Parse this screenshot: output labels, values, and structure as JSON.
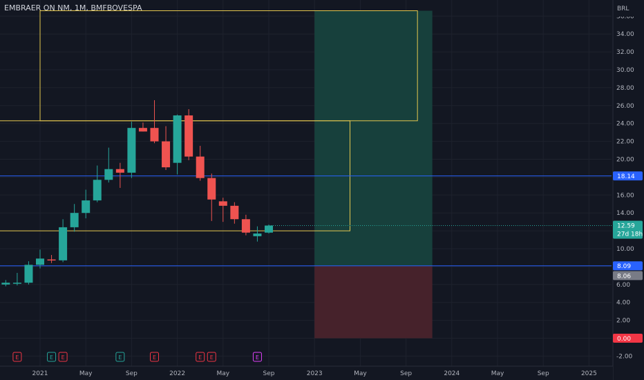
{
  "header": {
    "title": "EMBRAER ON NM, 1M, BMFBOVESPA"
  },
  "chart_data": {
    "type": "candlestick",
    "currency": "BRL",
    "y_ticks": [
      "-2.00",
      "0.00",
      "2.00",
      "4.00",
      "6.00",
      "8.00",
      "10.00",
      "12.00",
      "14.00",
      "16.00",
      "18.00",
      "20.00",
      "22.00",
      "24.00",
      "26.00",
      "28.00",
      "30.00",
      "32.00",
      "34.00",
      "36.00"
    ],
    "y_tick_values": [
      -2,
      0,
      2,
      4,
      6,
      8,
      10,
      12,
      14,
      16,
      18,
      20,
      22,
      24,
      26,
      28,
      30,
      32,
      34,
      36
    ],
    "x_ticks": [
      {
        "label": "2021",
        "month": 0
      },
      {
        "label": "May",
        "month": 4
      },
      {
        "label": "Sep",
        "month": 8
      },
      {
        "label": "2022",
        "month": 12
      },
      {
        "label": "May",
        "month": 16
      },
      {
        "label": "Sep",
        "month": 20
      },
      {
        "label": "2023",
        "month": 24
      },
      {
        "label": "May",
        "month": 28
      },
      {
        "label": "Sep",
        "month": 32
      },
      {
        "label": "2024",
        "month": 36
      },
      {
        "label": "May",
        "month": 40
      },
      {
        "label": "Sep",
        "month": 44
      },
      {
        "label": "2025",
        "month": 48
      }
    ],
    "candles": [
      {
        "m": -3,
        "o": 6.0,
        "h": 6.5,
        "l": 5.8,
        "c": 6.2
      },
      {
        "m": -2,
        "o": 6.1,
        "h": 7.3,
        "l": 5.9,
        "c": 6.2
      },
      {
        "m": -1,
        "o": 6.2,
        "h": 8.6,
        "l": 6.0,
        "c": 8.2
      },
      {
        "m": 0,
        "o": 8.2,
        "h": 9.9,
        "l": 7.8,
        "c": 8.9
      },
      {
        "m": 1,
        "o": 8.8,
        "h": 9.3,
        "l": 8.4,
        "c": 8.7
      },
      {
        "m": 2,
        "o": 8.7,
        "h": 13.3,
        "l": 8.5,
        "c": 12.4
      },
      {
        "m": 3,
        "o": 12.4,
        "h": 15.0,
        "l": 11.9,
        "c": 14.0
      },
      {
        "m": 4,
        "o": 14.0,
        "h": 16.6,
        "l": 13.4,
        "c": 15.4
      },
      {
        "m": 5,
        "o": 15.4,
        "h": 19.3,
        "l": 15.2,
        "c": 17.7
      },
      {
        "m": 6,
        "o": 17.7,
        "h": 21.3,
        "l": 17.4,
        "c": 18.9
      },
      {
        "m": 7,
        "o": 18.9,
        "h": 19.6,
        "l": 16.8,
        "c": 18.5
      },
      {
        "m": 8,
        "o": 18.5,
        "h": 24.2,
        "l": 17.9,
        "c": 23.5
      },
      {
        "m": 9,
        "o": 23.5,
        "h": 24.1,
        "l": 23.1,
        "c": 23.1
      },
      {
        "m": 10,
        "o": 23.5,
        "h": 26.6,
        "l": 21.8,
        "c": 22.0
      },
      {
        "m": 11,
        "o": 22.0,
        "h": 23.7,
        "l": 18.8,
        "c": 19.1
      },
      {
        "m": 12,
        "o": 19.6,
        "h": 25.0,
        "l": 18.3,
        "c": 24.9
      },
      {
        "m": 13,
        "o": 24.9,
        "h": 25.6,
        "l": 19.9,
        "c": 20.3
      },
      {
        "m": 14,
        "o": 20.3,
        "h": 21.5,
        "l": 17.6,
        "c": 17.9
      },
      {
        "m": 15,
        "o": 17.9,
        "h": 18.4,
        "l": 13.1,
        "c": 15.5
      },
      {
        "m": 16,
        "o": 15.3,
        "h": 15.7,
        "l": 13.0,
        "c": 14.8
      },
      {
        "m": 17,
        "o": 14.8,
        "h": 15.2,
        "l": 12.8,
        "c": 13.3
      },
      {
        "m": 18,
        "o": 13.3,
        "h": 13.8,
        "l": 11.5,
        "c": 11.8
      },
      {
        "m": 19,
        "o": 11.4,
        "h": 12.5,
        "l": 10.8,
        "c": 11.7
      },
      {
        "m": 20,
        "o": 11.8,
        "h": 12.7,
        "l": 11.7,
        "c": 12.59
      }
    ],
    "horizontal_lines": [
      18.14,
      8.09
    ],
    "rectangles": [
      {
        "m0": 0.0,
        "m1": 33.0,
        "p0": 24.3,
        "p1": 36.6
      },
      {
        "m0": -5.0,
        "m1": 27.1,
        "p0": 12.0,
        "p1": 24.3
      }
    ],
    "position": {
      "m0": 24.0,
      "m1": 34.3,
      "entry": 8.09,
      "target": 36.6,
      "stop": 0.0
    },
    "last_price_line": 12.59,
    "price_tags": [
      {
        "value": 18.14,
        "label": "18.14",
        "color": "#2962ff",
        "text_color": "#ffffff"
      },
      {
        "value": 12.59,
        "label": "12.59",
        "color": "#26a69a",
        "text_color": "#ffffff",
        "sublabel": "27d 18h"
      },
      {
        "value": 8.09,
        "label": "8.09",
        "color": "#2962ff",
        "text_color": "#ffffff"
      },
      {
        "value": 7.0,
        "label": "8.06",
        "color": "#787b86",
        "text_color": "#ffffff"
      },
      {
        "value": 0.0,
        "label": "0.00",
        "color": "#f23645",
        "text_color": "#ffffff"
      }
    ],
    "earnings_markers": [
      {
        "m": -2,
        "label": "E",
        "color": "#f23645"
      },
      {
        "m": 1,
        "label": "E",
        "color": "#26a69a"
      },
      {
        "m": 2,
        "label": "E",
        "color": "#f23645"
      },
      {
        "m": 7,
        "label": "E",
        "color": "#26a69a"
      },
      {
        "m": 10,
        "label": "E",
        "color": "#f23645"
      },
      {
        "m": 14,
        "label": "E",
        "color": "#f23645"
      },
      {
        "m": 15,
        "label": "E",
        "color": "#f23645"
      },
      {
        "m": 19,
        "label": "E",
        "color": "#e040fb"
      }
    ],
    "colors": {
      "up": "#26a69a",
      "down": "#ef5350",
      "rect": "#e6c84f",
      "hline": "#2962ff",
      "profit_zone": "#17403c",
      "loss_zone": "#46222b",
      "grid": "#1e222d"
    }
  }
}
